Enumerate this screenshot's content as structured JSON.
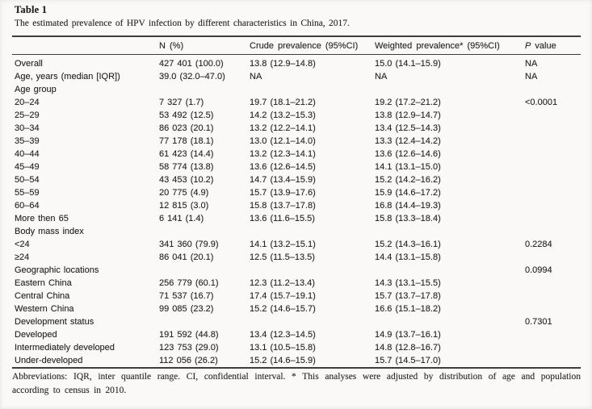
{
  "colors": {
    "background": "#faf9f7",
    "text": "#262626",
    "rule": "#3d3d3d"
  },
  "table": {
    "label": "Table 1",
    "caption": "The estimated prevalence of HPV infection by different characteristics in China, 2017.",
    "columns": [
      "",
      "N (%)",
      "Crude prevalence (95%CI)",
      "Weighted prevalence* (95%CI)",
      "P value"
    ],
    "rows": [
      {
        "label": "Overall",
        "n": "427 401 (100.0)",
        "crude": "13.8 (12.9–14.8)",
        "weighted": "15.0 (14.1–15.9)",
        "p": "NA"
      },
      {
        "label": "Age, years (median [IQR])",
        "n": "39.0 (32.0–47.0)",
        "crude": "NA",
        "weighted": "NA",
        "p": "NA"
      },
      {
        "label": "Age group",
        "n": "",
        "crude": "",
        "weighted": "",
        "p": ""
      },
      {
        "label": "20–24",
        "n": "7 327 (1.7)",
        "crude": "19.7 (18.1–21.2)",
        "weighted": "19.2 (17.2–21.2)",
        "p": "<0.0001"
      },
      {
        "label": "25–29",
        "n": "53 492 (12.5)",
        "crude": "14.2 (13.2–15.3)",
        "weighted": "13.8 (12.9–14.7)",
        "p": ""
      },
      {
        "label": "30–34",
        "n": "86 023 (20.1)",
        "crude": "13.2 (12.2–14.1)",
        "weighted": "13.4 (12.5–14.3)",
        "p": ""
      },
      {
        "label": "35–39",
        "n": "77 178 (18.1)",
        "crude": "13.0 (12.1–14.0)",
        "weighted": "13.3 (12.4–14.2)",
        "p": ""
      },
      {
        "label": "40–44",
        "n": "61 423 (14.4)",
        "crude": "13.2 (12.3–14.1)",
        "weighted": "13.6 (12.6–14.6)",
        "p": ""
      },
      {
        "label": "45–49",
        "n": "58 774 (13.8)",
        "crude": "13.6 (12.6–14.5)",
        "weighted": "14.1 (13.1–15.0)",
        "p": ""
      },
      {
        "label": "50–54",
        "n": "43 453 (10.2)",
        "crude": "14.7 (13.4–15.9)",
        "weighted": "15.2 (14.2–16.2)",
        "p": ""
      },
      {
        "label": "55–59",
        "n": "20 775 (4.9)",
        "crude": "15.7 (13.9–17.6)",
        "weighted": "15.9 (14.6–17.2)",
        "p": ""
      },
      {
        "label": "60–64",
        "n": "12 815 (3.0)",
        "crude": "15.8 (13.7–17.8)",
        "weighted": "16.8 (14.4–19.3)",
        "p": ""
      },
      {
        "label": "More then 65",
        "n": "6 141 (1.4)",
        "crude": "13.6 (11.6–15.5)",
        "weighted": "15.8 (13.3–18.4)",
        "p": ""
      },
      {
        "label": "Body mass index",
        "n": "",
        "crude": "",
        "weighted": "",
        "p": ""
      },
      {
        "label": "<24",
        "n": "341 360 (79.9)",
        "crude": "14.1 (13.2–15.1)",
        "weighted": "15.2 (14.3–16.1)",
        "p": "0.2284"
      },
      {
        "label": "≥24",
        "n": "86 041 (20.1)",
        "crude": "12.5 (11.5–13.5)",
        "weighted": "14.4 (13.1–15.8)",
        "p": ""
      },
      {
        "label": "Geographic locations",
        "n": "",
        "crude": "",
        "weighted": "",
        "p": "0.0994"
      },
      {
        "label": "Eastern China",
        "n": "256 779 (60.1)",
        "crude": "12.3 (11.2–13.4)",
        "weighted": "14.3 (13.1–15.5)",
        "p": ""
      },
      {
        "label": "Central China",
        "n": "71 537 (16.7)",
        "crude": "17.4 (15.7–19.1)",
        "weighted": "15.7 (13.7–17.8)",
        "p": ""
      },
      {
        "label": "Western China",
        "n": "99 085 (23.2)",
        "crude": "15.2 (14.6–15.7)",
        "weighted": "16.6 (15.1–18.2)",
        "p": ""
      },
      {
        "label": "Development status",
        "n": "",
        "crude": "",
        "weighted": "",
        "p": "0.7301"
      },
      {
        "label": "Developed",
        "n": "191 592 (44.8)",
        "crude": "13.4 (12.3–14.5)",
        "weighted": "14.9 (13.7–16.1)",
        "p": ""
      },
      {
        "label": "Intermediately developed",
        "n": "123 753 (29.0)",
        "crude": "13.1 (10.5–15.8)",
        "weighted": "14.8 (12.8–16.7)",
        "p": ""
      },
      {
        "label": "Under-developed",
        "n": "112 056 (26.2)",
        "crude": "15.2 (14.6–15.9)",
        "weighted": "15.7 (14.5–17.0)",
        "p": ""
      }
    ],
    "footnote": "Abbreviations: IQR, inter quantile range. CI, confidential interval. * This analyses were adjusted by distribution of age and population according to census in 2010."
  }
}
